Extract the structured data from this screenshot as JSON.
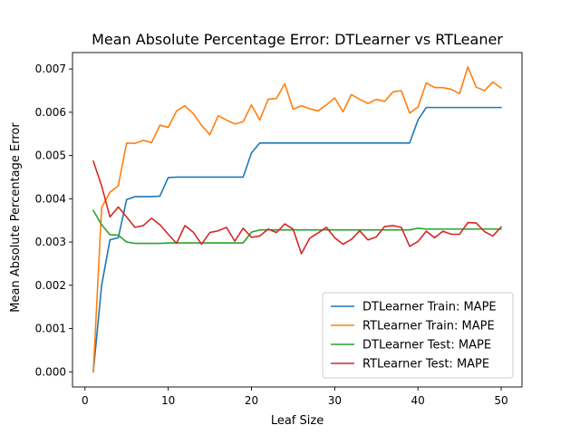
{
  "chart_data": {
    "type": "line",
    "title": "Mean Absolute Percentage Error: DTLearner vs RTLeaner",
    "xlabel": "Leaf Size",
    "ylabel": "Mean Absolute Percentage Error",
    "xlim": [
      -1.5,
      52.5
    ],
    "ylim": [
      -0.00035,
      0.00738
    ],
    "xticks": [
      0,
      10,
      20,
      30,
      40,
      50
    ],
    "yticks": [
      0.0,
      0.001,
      0.002,
      0.003,
      0.004,
      0.005,
      0.006,
      0.007
    ],
    "xtick_labels": [
      "0",
      "10",
      "20",
      "30",
      "40",
      "50"
    ],
    "ytick_labels": [
      "0.000",
      "0.001",
      "0.002",
      "0.003",
      "0.004",
      "0.005",
      "0.006",
      "0.007"
    ],
    "grid": false,
    "legend_position": "lower-right",
    "x": [
      1,
      2,
      3,
      4,
      5,
      6,
      7,
      8,
      9,
      10,
      11,
      12,
      13,
      14,
      15,
      16,
      17,
      18,
      19,
      20,
      21,
      22,
      23,
      24,
      25,
      26,
      27,
      28,
      29,
      30,
      31,
      32,
      33,
      34,
      35,
      36,
      37,
      38,
      39,
      40,
      41,
      42,
      43,
      44,
      45,
      46,
      47,
      48,
      49,
      50
    ],
    "series": [
      {
        "name": "DTLearner Train: MAPE",
        "color": "#1f77b4",
        "values": [
          0.0,
          0.002,
          0.00305,
          0.0031,
          0.00398,
          0.00405,
          0.00405,
          0.00405,
          0.00406,
          0.00449,
          0.0045,
          0.0045,
          0.0045,
          0.0045,
          0.0045,
          0.0045,
          0.0045,
          0.0045,
          0.0045,
          0.00506,
          0.00529,
          0.00529,
          0.00529,
          0.00529,
          0.00529,
          0.00529,
          0.00529,
          0.00529,
          0.00529,
          0.00529,
          0.00529,
          0.00529,
          0.00529,
          0.00529,
          0.00529,
          0.00529,
          0.00529,
          0.00529,
          0.00529,
          0.00582,
          0.00611,
          0.00611,
          0.00611,
          0.00611,
          0.00611,
          0.00611,
          0.00611,
          0.00611,
          0.00611,
          0.00611
        ]
      },
      {
        "name": "RTLearner Train: MAPE",
        "color": "#ff7f0e",
        "values": [
          0.0,
          0.0038,
          0.00415,
          0.0043,
          0.00529,
          0.00528,
          0.00535,
          0.0053,
          0.0057,
          0.00565,
          0.00603,
          0.00615,
          0.00597,
          0.0057,
          0.00548,
          0.00592,
          0.00582,
          0.00573,
          0.00578,
          0.00617,
          0.00582,
          0.0063,
          0.00632,
          0.00666,
          0.00607,
          0.00615,
          0.00608,
          0.00603,
          0.00617,
          0.00633,
          0.00601,
          0.00641,
          0.0063,
          0.0062,
          0.0063,
          0.00625,
          0.00647,
          0.0065,
          0.00598,
          0.00612,
          0.00668,
          0.00657,
          0.00657,
          0.00653,
          0.00643,
          0.00705,
          0.00658,
          0.0065,
          0.0067,
          0.00656
        ]
      },
      {
        "name": "DTLearner Test: MAPE",
        "color": "#2ca02c",
        "values": [
          0.00373,
          0.0034,
          0.00317,
          0.00316,
          0.003,
          0.00297,
          0.00297,
          0.00297,
          0.00297,
          0.00298,
          0.00298,
          0.00298,
          0.00298,
          0.00298,
          0.00298,
          0.00298,
          0.00298,
          0.00298,
          0.00298,
          0.00323,
          0.00328,
          0.00328,
          0.00328,
          0.00328,
          0.00328,
          0.00328,
          0.00328,
          0.00328,
          0.00328,
          0.00328,
          0.00328,
          0.00328,
          0.00328,
          0.00328,
          0.00328,
          0.00328,
          0.00328,
          0.00328,
          0.00328,
          0.00332,
          0.0033,
          0.0033,
          0.0033,
          0.0033,
          0.0033,
          0.0033,
          0.0033,
          0.0033,
          0.0033,
          0.0033
        ]
      },
      {
        "name": "RTLearner Test: MAPE",
        "color": "#d62728",
        "values": [
          0.00487,
          0.0043,
          0.00358,
          0.00381,
          0.00358,
          0.00334,
          0.00338,
          0.00355,
          0.0034,
          0.00318,
          0.00297,
          0.00338,
          0.00323,
          0.00295,
          0.00322,
          0.00326,
          0.00334,
          0.00302,
          0.00332,
          0.00311,
          0.00314,
          0.0033,
          0.00322,
          0.00342,
          0.0033,
          0.00273,
          0.00309,
          0.00321,
          0.00334,
          0.0031,
          0.00295,
          0.00306,
          0.00326,
          0.00305,
          0.00312,
          0.00336,
          0.00338,
          0.00334,
          0.0029,
          0.00301,
          0.00325,
          0.0031,
          0.00325,
          0.00318,
          0.00318,
          0.00345,
          0.00344,
          0.00324,
          0.00314,
          0.00335
        ]
      }
    ]
  }
}
